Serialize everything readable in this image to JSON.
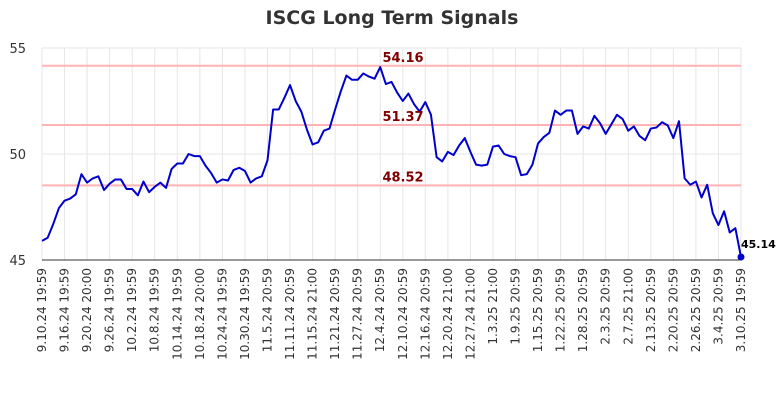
{
  "chart_data": {
    "type": "line",
    "title": "ISCG Long Term Signals",
    "xlabel": "",
    "ylabel": "",
    "ylim": [
      45,
      55
    ],
    "y_ticks": [
      "45",
      "50",
      "55"
    ],
    "x_tick_labels": [
      "9.10.24 19:59",
      "9.16.24 19:59",
      "9.20.24 20:00",
      "9.26.24 19:59",
      "10.2.24 19:59",
      "10.8.24 19:59",
      "10.14.24 19:59",
      "10.18.24 20:00",
      "10.24.24 19:59",
      "10.30.24 19:59",
      "11.5.24 20:59",
      "11.11.24 20:59",
      "11.15.24 21:00",
      "11.21.24 20:59",
      "11.27.24 20:59",
      "12.4.24 20:59",
      "12.10.24 20:59",
      "12.16.24 20:59",
      "12.20.24 21:00",
      "12.27.24 21:00",
      "1.3.25 21:00",
      "1.9.25 20:59",
      "1.15.25 20:59",
      "1.22.25 20:59",
      "1.28.25 20:59",
      "2.3.25 20:59",
      "2.7.25 21:00",
      "2.13.25 20:59",
      "2.20.25 20:59",
      "2.26.25 20:59",
      "3.4.25 20:59",
      "3.10.25 19:59"
    ],
    "grid": true,
    "legend": "none",
    "series": [
      {
        "color": "#0000cc",
        "values": [
          45.9,
          46.05,
          46.7,
          47.45,
          47.8,
          47.9,
          48.1,
          49.05,
          48.65,
          48.85,
          48.95,
          48.3,
          48.6,
          48.8,
          48.8,
          48.35,
          48.35,
          48.05,
          48.7,
          48.2,
          48.45,
          48.65,
          48.4,
          49.3,
          49.55,
          49.55,
          50.0,
          49.9,
          49.9,
          49.45,
          49.1,
          48.65,
          48.8,
          48.75,
          49.25,
          49.35,
          49.2,
          48.65,
          48.85,
          48.95,
          49.7,
          52.1,
          52.1,
          52.65,
          53.25,
          52.5,
          52.0,
          51.15,
          50.45,
          50.55,
          51.1,
          51.2,
          52.1,
          52.95,
          53.7,
          53.5,
          53.5,
          53.8,
          53.65,
          53.55,
          54.1,
          53.3,
          53.4,
          52.9,
          52.5,
          52.85,
          52.35,
          52.0,
          52.45,
          51.85,
          49.85,
          49.65,
          50.1,
          49.95,
          50.4,
          50.75,
          50.1,
          49.5,
          49.45,
          49.5,
          50.35,
          50.4,
          50.0,
          49.9,
          49.85,
          49.0,
          49.05,
          49.5,
          50.5,
          50.8,
          51.0,
          52.05,
          51.85,
          52.05,
          52.05,
          50.95,
          51.3,
          51.2,
          51.8,
          51.45,
          50.95,
          51.4,
          51.85,
          51.65,
          51.1,
          51.3,
          50.85,
          50.65,
          51.2,
          51.25,
          51.5,
          51.35,
          50.75,
          51.55,
          48.85,
          48.55,
          48.7,
          47.95,
          48.55,
          47.2,
          46.65,
          47.3,
          46.3,
          46.5,
          45.14
        ]
      }
    ],
    "horizontal_levels": [
      "54.16",
      "51.37",
      "48.52"
    ],
    "level_values": [
      54.16,
      51.37,
      48.52
    ],
    "level_color": "#ffb3b3",
    "level_label_color": "#800000",
    "last_value_label": "45.14"
  }
}
